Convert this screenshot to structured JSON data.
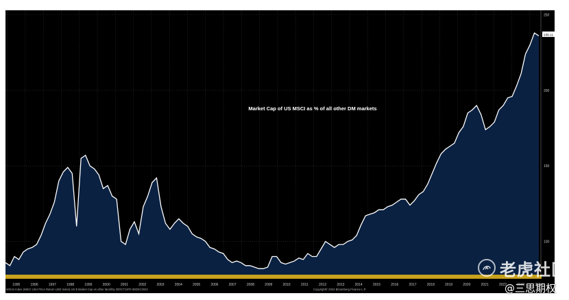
{
  "chart_data": {
    "type": "area",
    "title": "Market Cap of US MSCI as % of all other DM markets",
    "x_start": 1994.9,
    "x_end": 2024.5,
    "xlim": [
      1994.9,
      2024.5
    ],
    "ylim": [
      78,
      253
    ],
    "y_ticks": [
      100,
      150,
      200,
      250
    ],
    "x_tick_labels": [
      "1995",
      "1996",
      "1997",
      "1998",
      "1999",
      "2000",
      "2001",
      "2002",
      "2003",
      "2004",
      "2005",
      "2006",
      "2007",
      "2008",
      "2009",
      "2010",
      "2011",
      "2012",
      "2013",
      "2014",
      "2015",
      "2016",
      "2017",
      "2018",
      "2019",
      "2020",
      "2021",
      "2022",
      "2023",
      "2024"
    ],
    "last_value_label": "236.11",
    "footer_left": "MXUS Index (MSCI USA Price Return USD Index) US $ Market Cap vs other  Monthly 20OCT1970-30DEC2024",
    "footer_right": "Copyright© 2024 Bloomberg Finance L.P.",
    "grid": true,
    "series": [
      {
        "values": [
          86,
          84,
          90,
          88,
          93,
          95,
          96,
          98,
          104,
          112,
          118,
          126,
          140,
          146,
          149,
          145,
          110,
          155,
          157,
          150,
          148,
          144,
          135,
          137,
          130,
          128,
          100,
          98,
          108,
          113,
          105,
          123,
          130,
          139,
          142,
          123,
          112,
          108,
          112,
          115,
          112,
          110,
          105,
          103,
          102,
          100,
          96,
          95,
          93,
          92,
          88,
          86,
          87,
          86,
          84,
          84,
          83,
          82,
          82,
          83,
          90,
          90,
          86,
          85,
          86,
          87,
          89,
          88,
          92,
          90,
          90,
          95,
          100,
          98,
          96,
          98,
          98,
          100,
          101,
          104,
          111,
          117,
          118,
          119,
          121,
          121,
          123,
          124,
          126,
          128,
          128,
          124,
          127,
          131,
          133,
          138,
          145,
          152,
          158,
          161,
          163,
          165,
          172,
          176,
          185,
          187,
          190,
          184,
          174,
          176,
          179,
          187,
          190,
          195,
          196,
          203,
          211,
          224,
          230,
          238,
          236.11
        ]
      }
    ]
  },
  "watermark": {
    "brand_text": "老虎社区",
    "handle_text": "@三思期权"
  },
  "colors": {
    "background": "#000000",
    "area_fill": "#0a2142",
    "line": "#ffffff",
    "axis_strip": "#c8a21e"
  }
}
